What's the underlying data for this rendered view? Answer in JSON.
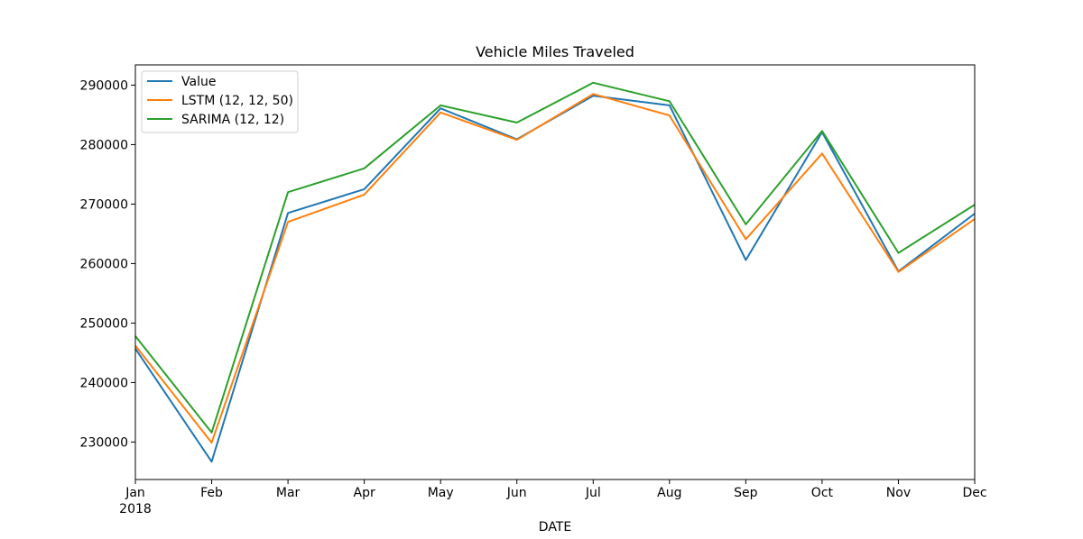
{
  "chart_data": {
    "type": "line",
    "title": "Vehicle Miles Traveled",
    "xlabel": "DATE",
    "ylabel": "",
    "categories": [
      "Jan",
      "Feb",
      "Mar",
      "Apr",
      "May",
      "Jun",
      "Jul",
      "Aug",
      "Sep",
      "Oct",
      "Nov",
      "Dec"
    ],
    "year_label": "2018",
    "ylim": [
      223700,
      293400
    ],
    "yticks": [
      230000,
      240000,
      250000,
      260000,
      270000,
      280000,
      290000
    ],
    "grid": false,
    "legend_position": "top-left",
    "series": [
      {
        "name": "Value",
        "color": "#1f77b4",
        "values": [
          245700,
          226700,
          268500,
          272500,
          286100,
          280900,
          288200,
          286600,
          260600,
          282100,
          258700,
          268400
        ]
      },
      {
        "name": "LSTM (12, 12, 50)",
        "color": "#ff7f0e",
        "values": [
          246200,
          229900,
          267000,
          271600,
          285400,
          280800,
          288500,
          284900,
          264100,
          278500,
          258600,
          267500
        ]
      },
      {
        "name": "SARIMA (12, 12)",
        "color": "#2ca02c",
        "values": [
          247800,
          231600,
          272000,
          276000,
          286600,
          283700,
          290400,
          287300,
          266600,
          282300,
          261800,
          269900
        ]
      }
    ]
  }
}
